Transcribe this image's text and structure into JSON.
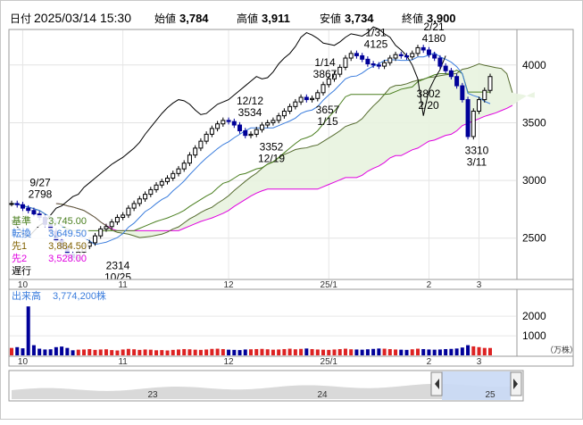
{
  "header": {
    "date_label": "日付",
    "date": "2025/03/14 15:30",
    "open_label": "始値",
    "open": "3,784",
    "high_label": "高値",
    "high": "3,911",
    "low_label": "安値",
    "low": "3,734",
    "close_label": "終値",
    "close": "3,900"
  },
  "colors": {
    "up": "#000000",
    "down": "#000099",
    "high_value": "#cc0000",
    "low_value": "#008000",
    "tenkan": "#000000",
    "kijun": "#3b7ddd",
    "senkou1": "#556b2f",
    "senkou2": "#e000e0",
    "chikou": "#000000",
    "cloud": "#e8f3df",
    "volume": "#dd2222"
  },
  "ichimoku_legend": [
    {
      "label": "基準",
      "value": "3,745.00",
      "color": "#4a7f1f"
    },
    {
      "label": "転換",
      "value": "3,649.50",
      "color": "#3b7ddd"
    },
    {
      "label": "先1",
      "value": "3,884.50",
      "color": "#806000"
    },
    {
      "label": "先2",
      "value": "3,528.00",
      "color": "#e000e0"
    },
    {
      "label": "遅行",
      "value": "",
      "color": "#000000"
    }
  ],
  "volume_label": "出来高",
  "volume_value": "3,774,200株",
  "volume_unit": "（万株）",
  "chart_data": {
    "type": "candlestick",
    "y_ticks": [
      "4000",
      "3500",
      "3000",
      "2500"
    ],
    "y_range": [
      2150,
      4300
    ],
    "x_month_labels": [
      "10",
      "11",
      "12",
      "25/1",
      "2",
      "3"
    ],
    "volume_ticks": [
      "2000",
      "1000"
    ],
    "volume_range": [
      0,
      2600
    ],
    "navigator_labels": [
      "23",
      "24",
      "25"
    ],
    "annotations": [
      {
        "date": "9/27",
        "value": "2798"
      },
      {
        "date": "10/25",
        "value": "2314"
      },
      {
        "date": "12/12",
        "value": "3534"
      },
      {
        "date": "12/19",
        "value": "3352"
      },
      {
        "date": "1/14",
        "value": "3867"
      },
      {
        "date": "1/15",
        "value": "3657"
      },
      {
        "date": "1/31",
        "value": "4125"
      },
      {
        "date": "2/21",
        "value": "4180"
      },
      {
        "date": "2/20",
        "value": "3802"
      },
      {
        "date": "3/11",
        "value": "3310"
      }
    ],
    "close_series": [
      2800,
      2790,
      2760,
      2740,
      2710,
      2680,
      2620,
      2560,
      2480,
      2420,
      2360,
      2330,
      2380,
      2430,
      2460,
      2520,
      2580,
      2600,
      2640,
      2680,
      2700,
      2760,
      2800,
      2840,
      2880,
      2920,
      2960,
      2990,
      3020,
      3060,
      3100,
      3150,
      3220,
      3280,
      3340,
      3400,
      3450,
      3490,
      3520,
      3510,
      3480,
      3430,
      3390,
      3400,
      3440,
      3480,
      3500,
      3520,
      3560,
      3600,
      3640,
      3680,
      3720,
      3700,
      3710,
      3760,
      3830,
      3880,
      3920,
      3980,
      4060,
      4100,
      4080,
      4050,
      4010,
      4000,
      3990,
      4020,
      4060,
      4090,
      4080,
      4070,
      4100,
      4150,
      4130,
      4090,
      4060,
      3990,
      3950,
      3900,
      3820,
      3700,
      3380,
      3600,
      3700,
      3780,
      3900
    ],
    "volume_series": [
      380,
      420,
      360,
      2500,
      520,
      340,
      300,
      310,
      420,
      450,
      380,
      260,
      290,
      300,
      320,
      280,
      300,
      310,
      270,
      250,
      300,
      330,
      310,
      280,
      300,
      290,
      260,
      270,
      250,
      280,
      300,
      320,
      310,
      290,
      280,
      300,
      330,
      340,
      320,
      290,
      280,
      270,
      300,
      310,
      320,
      330,
      310,
      290,
      300,
      320,
      340,
      310,
      330,
      350,
      320,
      300,
      290,
      280,
      300,
      320,
      340,
      310,
      300,
      290,
      310,
      330,
      350,
      340,
      320,
      300,
      290,
      280,
      310,
      340,
      320,
      300,
      290,
      300,
      320,
      330,
      350,
      400,
      520,
      460,
      420,
      380,
      377
    ]
  }
}
